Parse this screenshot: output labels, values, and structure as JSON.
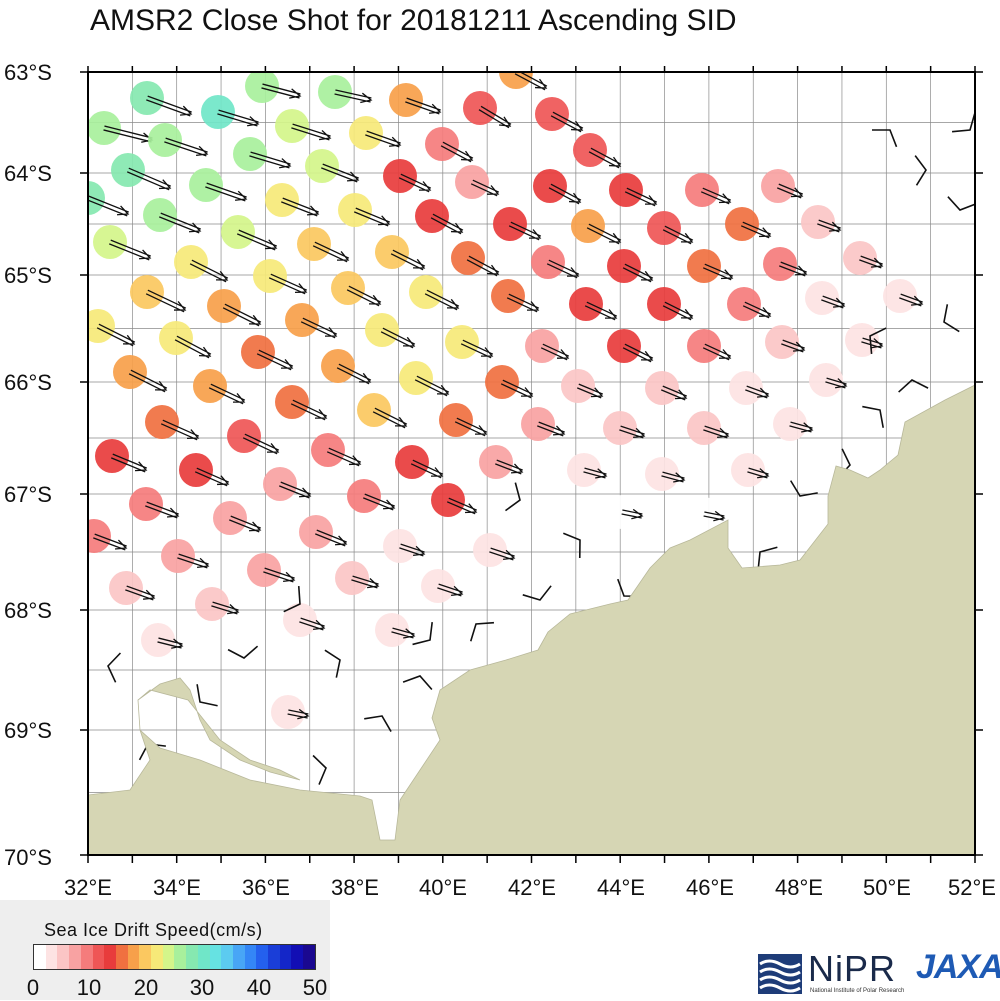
{
  "title": "AMSR2 Close Shot for 20181211 Ascending SID",
  "map": {
    "lat_labels": [
      "63°S",
      "64°S",
      "65°S",
      "66°S",
      "67°S",
      "68°S",
      "69°S",
      "70°S"
    ],
    "lon_labels": [
      "32°E",
      "34°E",
      "36°E",
      "38°E",
      "40°E",
      "42°E",
      "44°E",
      "46°E",
      "48°E",
      "50°E",
      "52°E"
    ],
    "lat_range": [
      -70,
      -63
    ],
    "lon_range": [
      32,
      52
    ],
    "land_color": "#d6d6b4",
    "grid": true
  },
  "legend": {
    "title": "Sea Ice Drift Speed(cm/s)",
    "ticks": [
      "0",
      "10",
      "20",
      "30",
      "40",
      "50"
    ],
    "range": [
      0,
      50
    ],
    "colors": [
      "#ffffff",
      "#fde3e3",
      "#fbc5c5",
      "#f8a2a2",
      "#f57c7c",
      "#ef5656",
      "#e83c3c",
      "#f07040",
      "#f7a04a",
      "#fbc860",
      "#f6e978",
      "#d4f58a",
      "#a8f09c",
      "#86e8b0",
      "#70e6c8",
      "#66e2e2",
      "#5ccbf0",
      "#48a6f6",
      "#3486f6",
      "#2460ee",
      "#1a3ed8",
      "#1426c8",
      "#120eb4",
      "#1a0890"
    ]
  },
  "logos": {
    "nipr": "NiPR",
    "nipr_sub": "National Institute of Polar Research",
    "jaxa": "JAXA",
    "nipr_icon": "waves-icon"
  }
}
